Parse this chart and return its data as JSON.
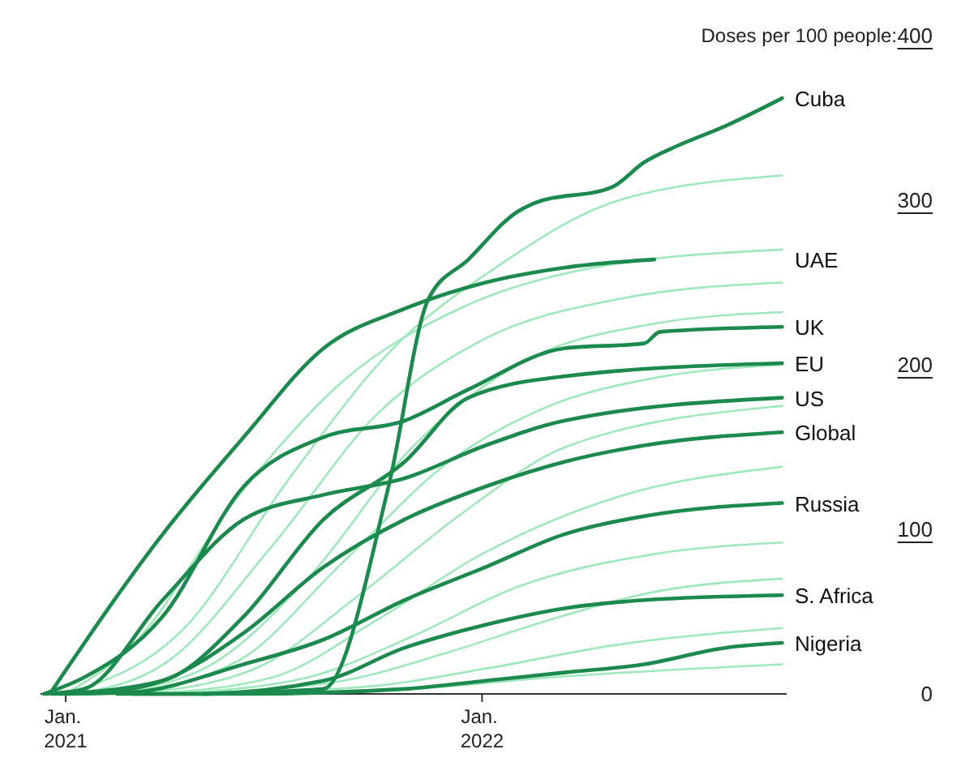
{
  "chart_data": {
    "type": "line",
    "ylabel": "Doses per 100 people:",
    "xlim": [
      "2020-12-10",
      "2022-09-25"
    ],
    "xticks": [
      {
        "value": "2021-01-01",
        "label": "Jan. 2021"
      },
      {
        "value": "2022-01-01",
        "label": "Jan. 2022"
      }
    ],
    "ylim": [
      0,
      400
    ],
    "yticks": [
      0,
      100,
      200,
      300,
      400
    ],
    "grid": false,
    "legend": false,
    "marker": "none",
    "line_style": "solid",
    "series": [
      {
        "color": "#9fe8bb",
        "x": [
          "2021-01-01",
          "2021-04-15",
          "2021-07-15",
          "2021-10-15",
          "2022-01-15",
          "2022-05-01",
          "2022-09-21"
        ],
        "values": [
          0,
          40,
          130,
          210,
          260,
          300,
          315
        ]
      },
      {
        "color": "#9fe8bb",
        "x": [
          "2021-01-01",
          "2021-03-01",
          "2021-06-01",
          "2021-09-01",
          "2021-12-15",
          "2022-04-01",
          "2022-09-21"
        ],
        "values": [
          0,
          30,
          120,
          190,
          235,
          258,
          270
        ]
      },
      {
        "color": "#9fe8bb",
        "x": [
          "2021-01-10",
          "2021-04-01",
          "2021-07-01",
          "2021-10-01",
          "2022-01-01",
          "2022-05-01",
          "2022-09-21"
        ],
        "values": [
          0,
          20,
          90,
          170,
          215,
          240,
          250
        ]
      },
      {
        "color": "#9fe8bb",
        "x": [
          "2021-02-01",
          "2021-05-01",
          "2021-08-01",
          "2021-11-01",
          "2022-02-01",
          "2022-06-01",
          "2022-09-21"
        ],
        "values": [
          0,
          15,
          70,
          150,
          200,
          225,
          232
        ]
      },
      {
        "color": "#9fe8bb",
        "x": [
          "2021-02-15",
          "2021-06-01",
          "2021-09-01",
          "2021-12-01",
          "2022-03-01",
          "2022-06-01",
          "2022-09-21"
        ],
        "values": [
          0,
          20,
          80,
          140,
          175,
          192,
          200
        ]
      },
      {
        "color": "#9fe8bb",
        "x": [
          "2021-03-01",
          "2021-06-15",
          "2021-09-15",
          "2021-12-15",
          "2022-03-15",
          "2022-09-21"
        ],
        "values": [
          0,
          15,
          60,
          110,
          150,
          175
        ]
      },
      {
        "color": "#9fe8bb",
        "x": [
          "2021-03-15",
          "2021-07-01",
          "2021-10-01",
          "2022-01-01",
          "2022-05-01",
          "2022-09-21"
        ],
        "values": [
          0,
          10,
          45,
          85,
          120,
          138
        ]
      },
      {
        "color": "#9fe8bb",
        "x": [
          "2021-04-01",
          "2021-08-01",
          "2021-11-01",
          "2022-02-01",
          "2022-06-01",
          "2022-09-21"
        ],
        "values": [
          0,
          10,
          35,
          65,
          85,
          92
        ]
      },
      {
        "color": "#9fe8bb",
        "x": [
          "2021-04-15",
          "2021-09-01",
          "2021-12-01",
          "2022-03-01",
          "2022-06-01",
          "2022-09-21"
        ],
        "values": [
          0,
          8,
          25,
          45,
          62,
          70
        ]
      },
      {
        "color": "#9fe8bb",
        "x": [
          "2021-05-01",
          "2021-10-01",
          "2022-01-01",
          "2022-05-01",
          "2022-09-21"
        ],
        "values": [
          0,
          5,
          15,
          30,
          40
        ]
      },
      {
        "color": "#9fe8bb",
        "x": [
          "2021-06-01",
          "2021-11-01",
          "2022-03-01",
          "2022-09-21"
        ],
        "values": [
          0,
          3,
          10,
          18
        ]
      },
      {
        "name": "Cuba",
        "color": "#1b8a4c",
        "x": [
          "2021-05-01",
          "2021-08-15",
          "2021-10-11",
          "2021-11-15",
          "2021-12-20",
          "2022-02-01",
          "2022-02-15",
          "2022-04-25",
          "2022-05-23",
          "2022-06-21",
          "2022-08-02",
          "2022-09-21"
        ],
        "values": [
          0,
          3,
          126,
          240,
          264,
          293,
          298,
          308,
          323,
          333,
          345,
          362
        ]
      },
      {
        "name": "UAE",
        "color": "#1b8a4c",
        "x": [
          "2020-12-20",
          "2021-03-27",
          "2021-06-06",
          "2021-08-15",
          "2021-10-25",
          "2022-01-04",
          "2022-03-14",
          "2022-06-01"
        ],
        "values": [
          2,
          97,
          156,
          210,
          234,
          250,
          259,
          264
        ]
      },
      {
        "name": "UK",
        "color": "#1b8a4c",
        "x": [
          "2020-12-13",
          "2021-01-17",
          "2021-03-27",
          "2021-06-06",
          "2021-08-15",
          "2021-10-25",
          "2021-12-20",
          "2022-03-14",
          "2022-05-23",
          "2022-06-06",
          "2022-09-21"
        ],
        "values": [
          0,
          10,
          47,
          126,
          156,
          166,
          185,
          210,
          213,
          220,
          223
        ]
      },
      {
        "name": "EU",
        "color": "#1b8a4c",
        "x": [
          "2020-12-27",
          "2021-03-27",
          "2021-06-06",
          "2021-08-15",
          "2021-10-25",
          "2021-12-20",
          "2022-03-14",
          "2022-09-21"
        ],
        "values": [
          0,
          8,
          47,
          106,
          141,
          180,
          193,
          201
        ]
      },
      {
        "name": "US",
        "color": "#1b8a4c",
        "x": [
          "2020-12-14",
          "2021-01-17",
          "2021-03-27",
          "2021-06-06",
          "2021-08-15",
          "2021-10-25",
          "2022-01-04",
          "2022-03-14",
          "2022-09-21"
        ],
        "values": [
          0,
          3,
          57,
          106,
          121,
          131,
          151,
          166,
          180
        ]
      },
      {
        "name": "Global",
        "color": "#1b8a4c",
        "x": [
          "2020-12-20",
          "2021-02-01",
          "2021-03-27",
          "2021-06-06",
          "2021-08-15",
          "2021-10-25",
          "2022-01-04",
          "2022-03-14",
          "2022-05-23",
          "2022-09-21"
        ],
        "values": [
          0,
          1,
          8,
          37,
          77,
          106,
          126,
          141,
          151,
          159
        ]
      },
      {
        "name": "Russia",
        "color": "#1b8a4c",
        "x": [
          "2021-01-01",
          "2021-02-28",
          "2021-06-06",
          "2021-08-15",
          "2021-10-25",
          "2022-01-04",
          "2022-03-14",
          "2022-05-23",
          "2022-09-21"
        ],
        "values": [
          0,
          1,
          18,
          33,
          57,
          77,
          97,
          108,
          116
        ]
      },
      {
        "name": "S. Africa",
        "color": "#1b8a4c",
        "x": [
          "2021-02-15",
          "2021-04-24",
          "2021-08-15",
          "2021-10-25",
          "2022-01-04",
          "2022-03-14",
          "2022-05-23",
          "2022-09-21"
        ],
        "values": [
          0,
          0,
          8,
          28,
          42,
          52,
          57,
          60
        ]
      },
      {
        "name": "Nigeria",
        "color": "#1b8a4c",
        "x": [
          "2021-03-01",
          "2021-06-06",
          "2021-10-25",
          "2022-01-04",
          "2022-03-14",
          "2022-05-23",
          "2022-08-02",
          "2022-09-21"
        ],
        "values": [
          0,
          0,
          3,
          8,
          13,
          18,
          28,
          31
        ]
      }
    ]
  }
}
